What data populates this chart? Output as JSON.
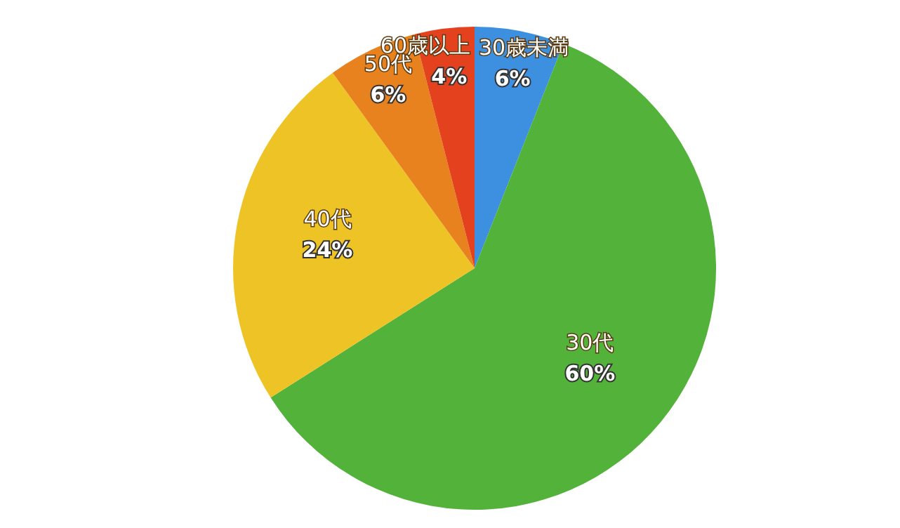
{
  "chart_data": {
    "type": "pie",
    "categories": [
      "30歳未満",
      "30代",
      "40代",
      "50代",
      "60歳以上"
    ],
    "values": [
      6,
      60,
      24,
      6,
      4
    ],
    "value_labels": [
      "6%",
      "60%",
      "24%",
      "6%",
      "4%"
    ],
    "colors": [
      "#3d8fe0",
      "#52b23a",
      "#eec326",
      "#e8821f",
      "#e4421f"
    ],
    "legend": false
  }
}
